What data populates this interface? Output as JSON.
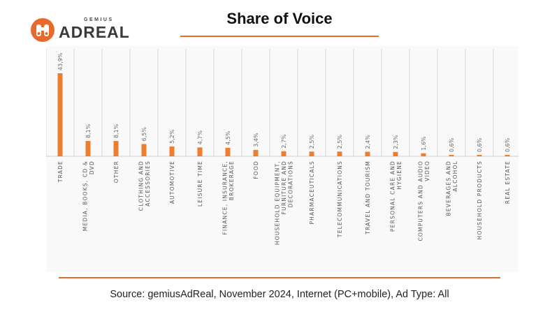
{
  "brand": {
    "sup": "GEMIUS",
    "name": "ADREAL",
    "color": "#e8692c"
  },
  "title": "Share of Voice",
  "footer": {
    "source": "Source: gemiusAdReal, November 2024, Internet (PC+mobile), Ad Type: All"
  },
  "chart_data": {
    "type": "bar",
    "categories": [
      "TRADE",
      "MEDIA, BOOKS, CD & DVD",
      "OTHER",
      "CLOTHING AND ACCESSORIES",
      "AUTOMOTIVE",
      "LEISURE TIME",
      "FINANCE, INSURANCE, BROKERAGE",
      "FOOD",
      "HOUSEHOLD EQUIPMENT, FURNITURE AND DECORATIONS",
      "PHARMACEUTICALS",
      "TELECOMMUNICATIONS",
      "TRAVEL AND TOURISM",
      "PERSONAL CARE AND HYGIENE",
      "COMPUTERS AND AUDIO VIDEO",
      "BEVERAGES AND ALCOHOL",
      "HOUSEHOLD PRODUCTS",
      "REAL ESTATE"
    ],
    "values": [
      43.9,
      8.1,
      8.1,
      6.5,
      5.2,
      4.7,
      4.5,
      3.4,
      2.7,
      2.5,
      2.5,
      2.4,
      2.3,
      1.6,
      0.6,
      0.6,
      0.6
    ],
    "value_labels": [
      "43,9%",
      "8,1%",
      "8,1%",
      "6,5%",
      "5,2%",
      "4,7%",
      "4,5%",
      "3,4%",
      "2,7%",
      "2,5%",
      "2,5%",
      "2,4%",
      "2,3%",
      "1,6%",
      "0,6%",
      "0,6%",
      "0,6%"
    ],
    "title": "Share of Voice",
    "xlabel": "",
    "ylabel": "",
    "ylim": [
      0,
      45
    ],
    "grid": "vertical category separators",
    "legend": "none",
    "bar_color": "#ed7d31"
  }
}
